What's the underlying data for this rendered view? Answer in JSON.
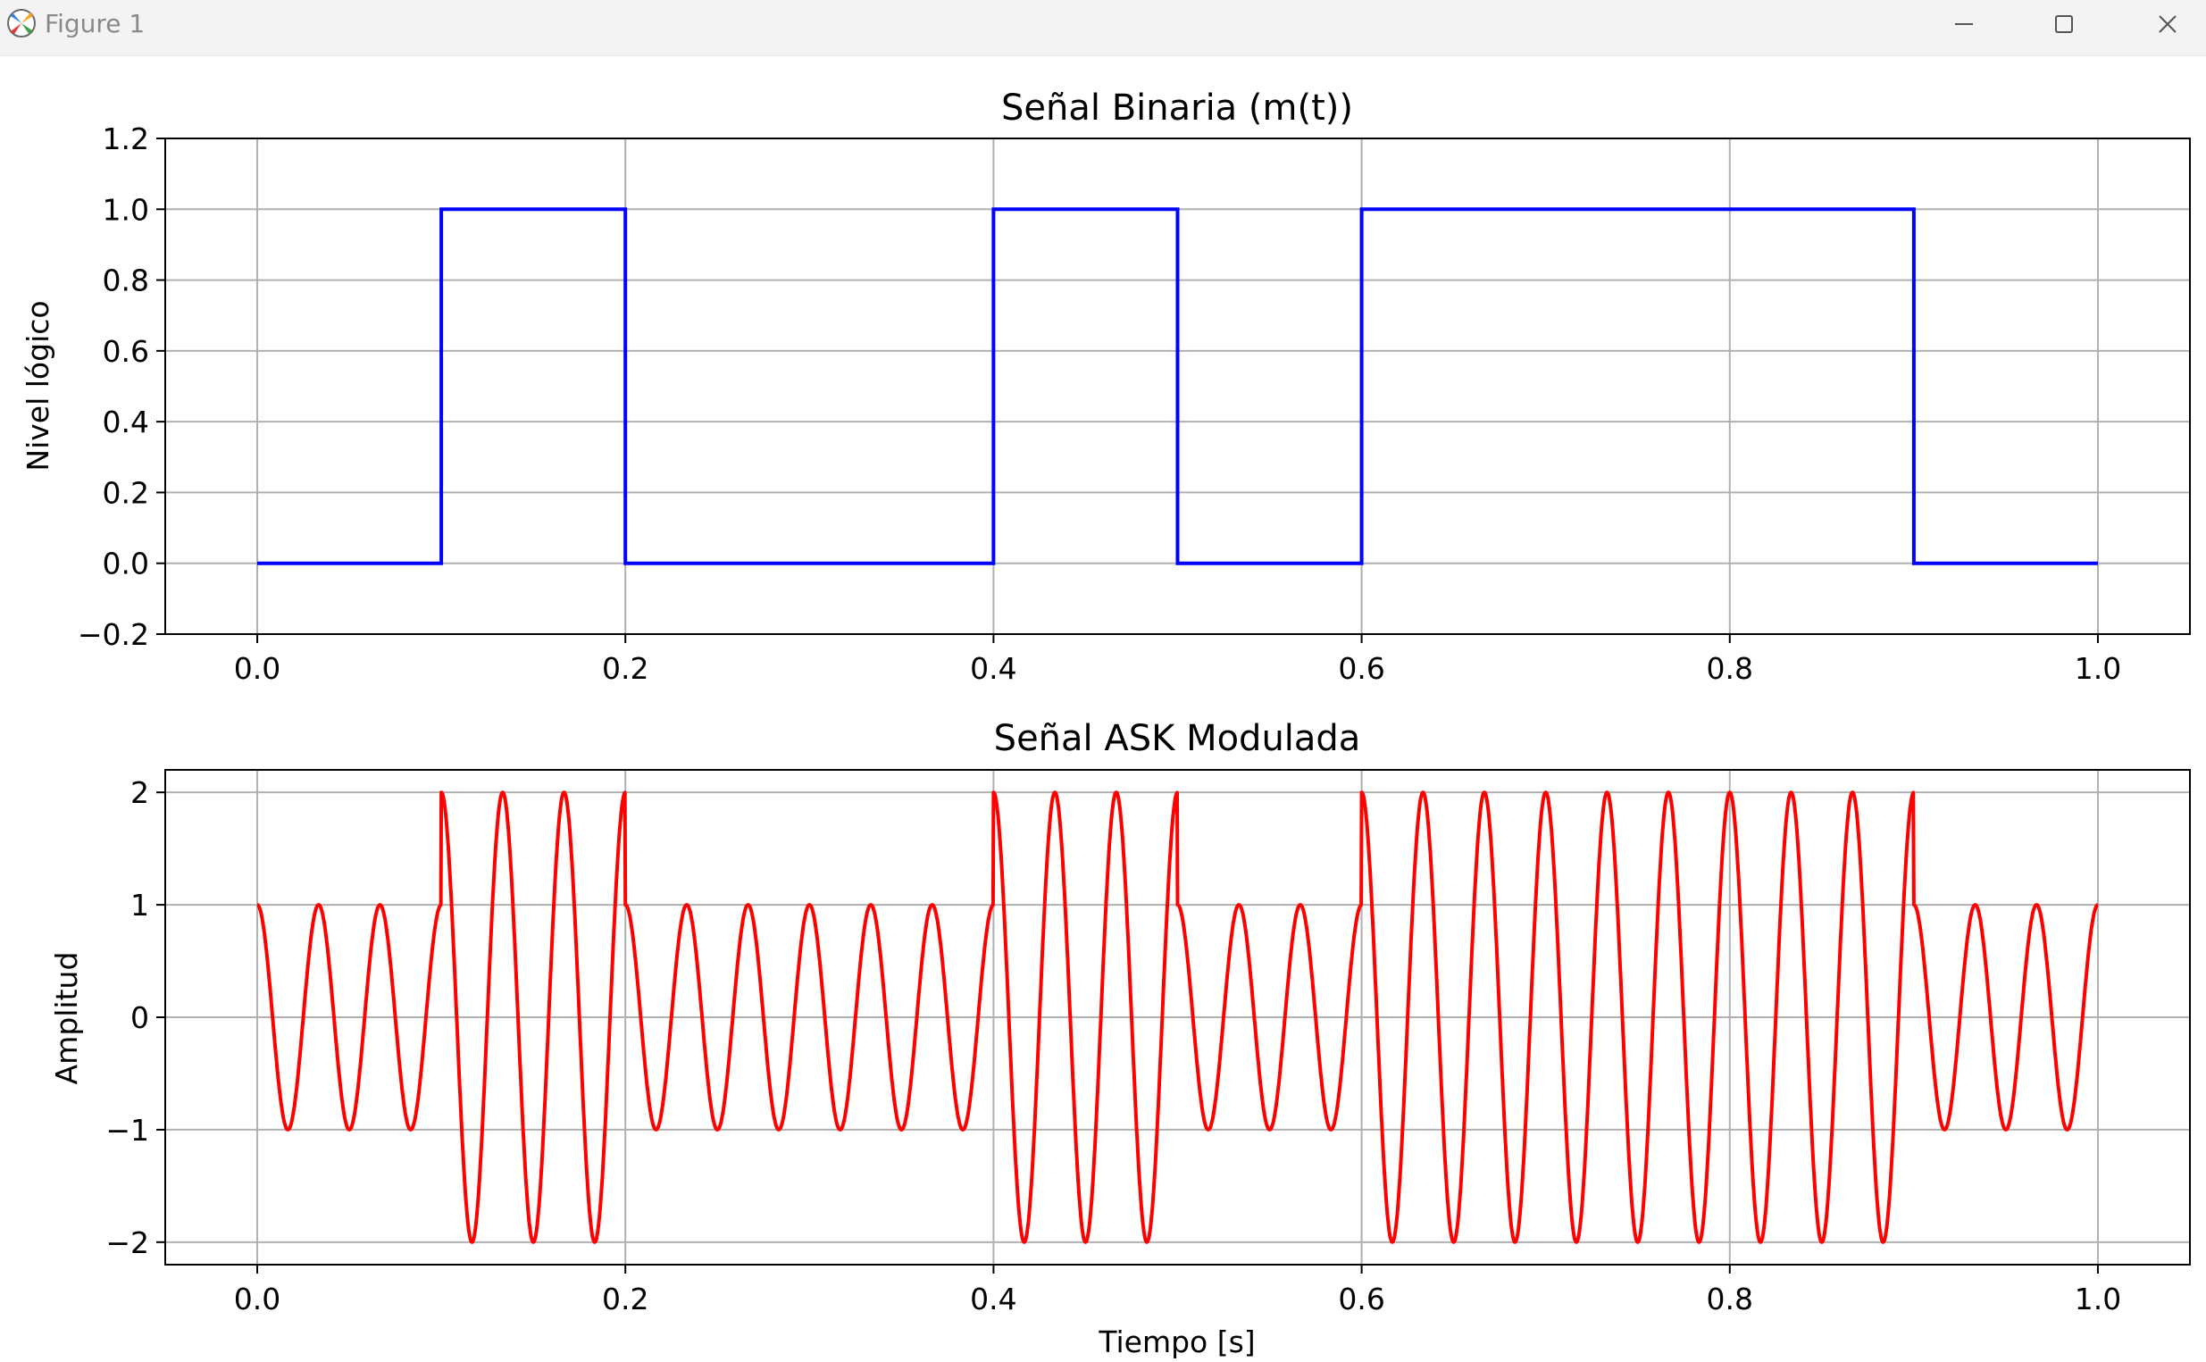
{
  "window": {
    "title": "Figure 1",
    "icons": [
      "matplotlib-icon",
      "minimize-icon",
      "maximize-icon",
      "close-icon"
    ]
  },
  "colors": {
    "binary_line": "#0000ff",
    "ask_line": "#ff0000",
    "grid": "#b0b0b0",
    "titlebar": "#f3f3f3"
  },
  "chart_data": [
    {
      "type": "line",
      "title": "Señal Binaria (m(t))",
      "xlabel": "",
      "ylabel": "Nivel lógico",
      "xlim": [
        -0.05,
        1.05
      ],
      "ylim": [
        -0.2,
        1.2
      ],
      "xticks": [
        "0.0",
        "0.2",
        "0.4",
        "0.6",
        "0.8",
        "1.0"
      ],
      "yticks": [
        "−0.2",
        "0.0",
        "0.2",
        "0.4",
        "0.6",
        "0.8",
        "1.0",
        "1.2"
      ],
      "grid": true,
      "bits": [
        0,
        1,
        0,
        0,
        1,
        0,
        1,
        1,
        1,
        0
      ],
      "bit_duration": 0.1,
      "series": [
        {
          "color": "#0000ff",
          "x": [
            0.0,
            0.1,
            0.1,
            0.2,
            0.2,
            0.4,
            0.4,
            0.5,
            0.5,
            0.6,
            0.6,
            0.9,
            0.9,
            1.0
          ],
          "y": [
            0,
            0,
            1,
            1,
            0,
            0,
            1,
            1,
            0,
            0,
            1,
            1,
            0,
            0
          ]
        }
      ]
    },
    {
      "type": "line",
      "title": "Señal ASK Modulada",
      "xlabel": "Tiempo [s]",
      "ylabel": "Amplitud",
      "xlim": [
        -0.05,
        1.05
      ],
      "ylim": [
        -2.2,
        2.2
      ],
      "xticks": [
        "0.0",
        "0.2",
        "0.4",
        "0.6",
        "0.8",
        "1.0"
      ],
      "yticks": [
        "−2",
        "−1",
        "0",
        "1",
        "2"
      ],
      "grid": true,
      "carrier_frequency_hz": 30,
      "amplitude_bit0": 1,
      "amplitude_bit1": 2,
      "bits": [
        0,
        1,
        0,
        0,
        1,
        0,
        1,
        1,
        1,
        0
      ],
      "series": [
        {
          "color": "#ff0000",
          "expression": "A(t)·cos(2π·30·t)",
          "t_range": [
            0,
            1
          ]
        }
      ]
    }
  ]
}
